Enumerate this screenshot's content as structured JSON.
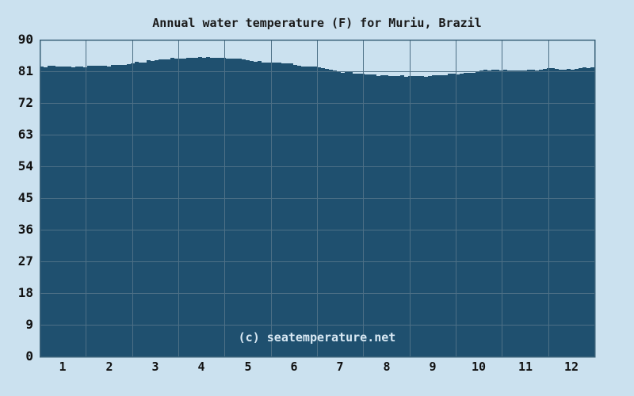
{
  "chart_data": {
    "type": "area",
    "title": "Annual water temperature (F) for Muriu, Brazil",
    "xlabel": "",
    "ylabel": "",
    "x_tick_labels": [
      "1",
      "2",
      "3",
      "4",
      "5",
      "6",
      "7",
      "8",
      "9",
      "10",
      "11",
      "12"
    ],
    "y_ticks": [
      0,
      9,
      18,
      27,
      36,
      45,
      54,
      63,
      72,
      81,
      90
    ],
    "ylim": [
      0,
      90
    ],
    "xlim_months": [
      0,
      12
    ],
    "grid": true,
    "legend": "none",
    "series": [
      {
        "name": "Water temperature (F)",
        "categories": [
          "1",
          "2",
          "3",
          "4",
          "5",
          "6",
          "7",
          "8",
          "9",
          "10",
          "11",
          "12"
        ],
        "values": [
          82.3,
          82.7,
          84.2,
          85.0,
          84.1,
          83.0,
          80.9,
          79.8,
          79.9,
          81.2,
          81.3,
          81.7
        ]
      }
    ],
    "curve_points": [
      [
        0.0,
        82.4
      ],
      [
        0.5,
        82.3
      ],
      [
        1.0,
        82.4
      ],
      [
        1.5,
        82.7
      ],
      [
        2.0,
        83.3
      ],
      [
        2.5,
        84.2
      ],
      [
        3.0,
        84.7
      ],
      [
        3.5,
        85.0
      ],
      [
        4.0,
        84.8
      ],
      [
        4.5,
        84.1
      ],
      [
        5.0,
        83.6
      ],
      [
        5.5,
        83.0
      ],
      [
        6.0,
        82.0
      ],
      [
        6.5,
        80.9
      ],
      [
        7.0,
        80.2
      ],
      [
        7.5,
        79.8
      ],
      [
        8.0,
        79.6
      ],
      [
        8.5,
        79.8
      ],
      [
        9.0,
        80.2
      ],
      [
        9.5,
        81.2
      ],
      [
        10.0,
        81.3
      ],
      [
        10.5,
        81.3
      ],
      [
        11.0,
        81.9
      ],
      [
        11.5,
        81.6
      ],
      [
        12.0,
        82.3
      ]
    ]
  },
  "watermark": {
    "text": "(c) seatemperature.net"
  },
  "colors": {
    "background": "#cbe1ef",
    "area_fill": "#1f506f",
    "gridline": "#4d7086",
    "plot_border": "#3a6178",
    "title_text": "#1a1a1a",
    "tick_text": "#111111",
    "watermark_text": "#d9e9f4"
  }
}
